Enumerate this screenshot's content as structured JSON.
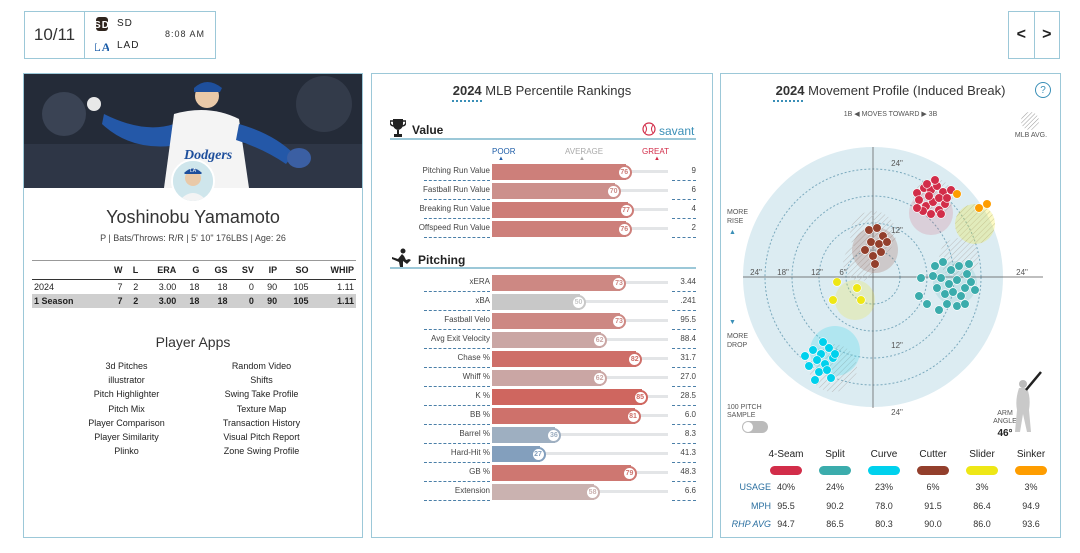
{
  "game": {
    "date": "10/11",
    "time": "8:08 AM",
    "teams": [
      {
        "abbr": "SD",
        "logo": "padres-logo"
      },
      {
        "abbr": "LAD",
        "logo": "dodgers-logo"
      }
    ],
    "prev_icon": "<",
    "next_icon": ">"
  },
  "player": {
    "name": "Yoshinobu Yamamoto",
    "info": "P | Bats/Throws: R/R | 5' 10\" 176LBS | Age: 26",
    "jersey_text": "Dodgers",
    "stats_headers": [
      "",
      "W",
      "L",
      "ERA",
      "G",
      "GS",
      "SV",
      "IP",
      "SO",
      "WHIP"
    ],
    "stats_rows": [
      [
        "2024",
        "7",
        "2",
        "3.00",
        "18",
        "18",
        "0",
        "90",
        "105",
        "1.11"
      ],
      [
        "1 Season",
        "7",
        "2",
        "3.00",
        "18",
        "18",
        "0",
        "90",
        "105",
        "1.11"
      ]
    ],
    "apps_title": "Player Apps",
    "apps_left": [
      "3d Pitches",
      "illustrator",
      "Pitch Highlighter",
      "Pitch Mix",
      "Player Comparison",
      "Player Similarity",
      "Plinko"
    ],
    "apps_right": [
      "Random Video",
      "Shifts",
      "Swing Take Profile",
      "Texture Map",
      "Transaction History",
      "Visual Pitch Report",
      "Zone Swing Profile"
    ]
  },
  "percentile": {
    "year": "2024",
    "title": "MLB Percentile Rankings",
    "value_section": "Value",
    "pitching_section": "Pitching",
    "brand": "savant",
    "scale": {
      "poor": "POOR",
      "average": "AVERAGE",
      "great": "GREAT"
    },
    "value_rows": [
      {
        "label": "Pitching Run Value",
        "pct": 76,
        "value": "9"
      },
      {
        "label": "Fastball Run Value",
        "pct": 70,
        "value": "6"
      },
      {
        "label": "Breaking Run Value",
        "pct": 77,
        "value": "4"
      },
      {
        "label": "Offspeed Run Value",
        "pct": 76,
        "value": "2"
      }
    ],
    "pitching_rows": [
      {
        "label": "xERA",
        "pct": 73,
        "value": "3.44"
      },
      {
        "label": "xBA",
        "pct": 50,
        "value": ".241"
      },
      {
        "label": "Fastball Velo",
        "pct": 73,
        "value": "95.5"
      },
      {
        "label": "Avg Exit Velocity",
        "pct": 62,
        "value": "88.4"
      },
      {
        "label": "Chase %",
        "pct": 82,
        "value": "31.7"
      },
      {
        "label": "Whiff %",
        "pct": 62,
        "value": "27.0"
      },
      {
        "label": "K %",
        "pct": 85,
        "value": "28.5"
      },
      {
        "label": "BB %",
        "pct": 81,
        "value": "6.0"
      },
      {
        "label": "Barrel %",
        "pct": 36,
        "value": "8.3"
      },
      {
        "label": "Hard-Hit %",
        "pct": 27,
        "value": "41.3"
      },
      {
        "label": "GB %",
        "pct": 79,
        "value": "48.3"
      },
      {
        "label": "Extension",
        "pct": 58,
        "value": "6.6"
      }
    ]
  },
  "movement": {
    "year": "2024",
    "title": "Movement Profile (Induced Break)",
    "help_icon": "?",
    "direction_note": "1B ◀ MOVES TOWARD ▶ 3B",
    "mlb_avg": "MLB AVG.",
    "more_rise": "MORE RISE",
    "more_drop": "MORE DROP",
    "sample_label": "100 PITCH SAMPLE",
    "arm_angle_label": "ARM ANGLE",
    "arm_angle": "46°",
    "ring_labels": {
      "top24": "24\"",
      "top12": "12\"",
      "bot12": "12\"",
      "bot24": "24\"",
      "l24": "24\"",
      "l18": "18\"",
      "l12": "12\"",
      "l6": "6\"",
      "r24": "24\""
    },
    "row_labels": {
      "usage": "USAGE",
      "mph": "MPH",
      "rhp": "RHP AVG"
    },
    "pitches": [
      {
        "name": "4-Seam",
        "color": "#d22d49",
        "usage": "40%",
        "mph": "95.5",
        "rhp": "94.7"
      },
      {
        "name": "Split",
        "color": "#3bacac",
        "usage": "24%",
        "mph": "90.2",
        "rhp": "86.5"
      },
      {
        "name": "Curve",
        "color": "#00d1ed",
        "usage": "23%",
        "mph": "78.0",
        "rhp": "80.3"
      },
      {
        "name": "Cutter",
        "color": "#933f2c",
        "usage": "6%",
        "mph": "91.5",
        "rhp": "90.0"
      },
      {
        "name": "Slider",
        "color": "#eee716",
        "usage": "3%",
        "mph": "86.4",
        "rhp": "86.0"
      },
      {
        "name": "Sinker",
        "color": "#fe9d00",
        "usage": "3%",
        "mph": "94.9",
        "rhp": "93.6"
      }
    ]
  }
}
